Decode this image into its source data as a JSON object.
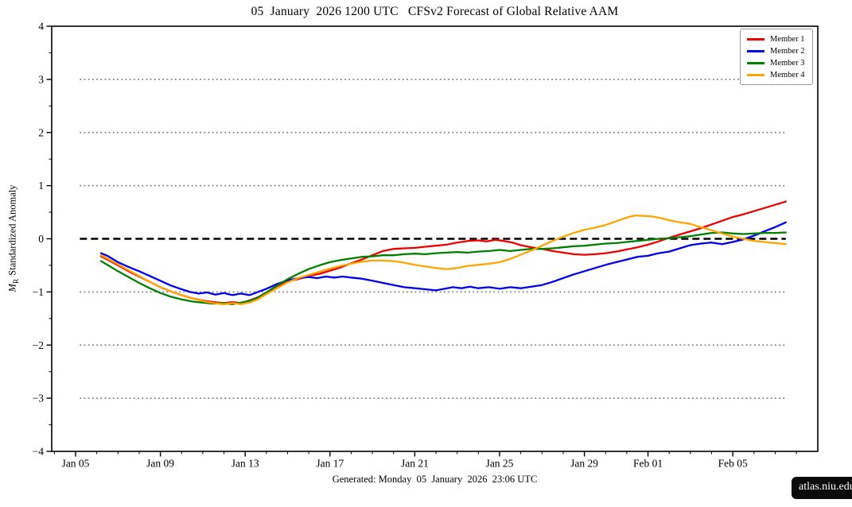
{
  "title": "05  January  2026 1200 UTC   CFSv2 Forecast of Global Relative AAM",
  "footer": "Generated: Monday  05  January  2026  23:06 UTC",
  "watermark": "atlas.niu.edu",
  "ylabel": {
    "var": "M",
    "sub": "R",
    "rest": "Standardized Anomaly"
  },
  "chart_data": {
    "type": "line",
    "title": "05 January 2026 1200 UTC CFSv2 Forecast of Global Relative AAM",
    "ylabel": "M_R Standardized Anomaly",
    "x_unit": "days since Jan 05",
    "xlim_days": [
      -1.13,
      35.0
    ],
    "ylim": [
      -4,
      4
    ],
    "grid": {
      "dotted_at": [
        3,
        2,
        1,
        -1,
        -2,
        -3
      ],
      "zero_dashed": true,
      "span_days": [
        0.2,
        33.5
      ]
    },
    "legend_position": "top-right",
    "xticks": [
      {
        "d": 0,
        "label": "Jan 05"
      },
      {
        "d": 4,
        "label": "Jan 09"
      },
      {
        "d": 8,
        "label": "Jan 13"
      },
      {
        "d": 12,
        "label": "Jan 17"
      },
      {
        "d": 16,
        "label": "Jan 21"
      },
      {
        "d": 20,
        "label": "Jan 25"
      },
      {
        "d": 24,
        "label": "Jan 29"
      },
      {
        "d": 27,
        "label": "Feb 01"
      },
      {
        "d": 31,
        "label": "Feb 05"
      }
    ],
    "yticks": [
      {
        "v": 4,
        "label": "4"
      },
      {
        "v": 3,
        "label": "3"
      },
      {
        "v": 2,
        "label": "2"
      },
      {
        "v": 1,
        "label": "1"
      },
      {
        "v": 0,
        "label": "0"
      },
      {
        "v": -1,
        "label": "−1"
      },
      {
        "v": -2,
        "label": "−2"
      },
      {
        "v": -3,
        "label": "−3"
      },
      {
        "v": -4,
        "label": "−4"
      }
    ],
    "series": [
      {
        "name": "Member 1",
        "color": "#ee0000",
        "points": [
          [
            1.2,
            -0.33
          ],
          [
            1.5,
            -0.39
          ],
          [
            2,
            -0.5
          ],
          [
            2.5,
            -0.61
          ],
          [
            3,
            -0.71
          ],
          [
            3.5,
            -0.81
          ],
          [
            4,
            -0.91
          ],
          [
            4.5,
            -0.99
          ],
          [
            5,
            -1.06
          ],
          [
            5.5,
            -1.12
          ],
          [
            6,
            -1.16
          ],
          [
            6.5,
            -1.19
          ],
          [
            7,
            -1.21
          ],
          [
            7.4,
            -1.19
          ],
          [
            7.8,
            -1.21
          ],
          [
            8.2,
            -1.16
          ],
          [
            8.6,
            -1.1
          ],
          [
            9,
            -1.01
          ],
          [
            9.5,
            -0.89
          ],
          [
            10,
            -0.8
          ],
          [
            10.5,
            -0.76
          ],
          [
            11,
            -0.7
          ],
          [
            11.5,
            -0.66
          ],
          [
            12,
            -0.6
          ],
          [
            12.5,
            -0.54
          ],
          [
            13,
            -0.46
          ],
          [
            13.5,
            -0.39
          ],
          [
            14,
            -0.31
          ],
          [
            14.5,
            -0.23
          ],
          [
            15,
            -0.19
          ],
          [
            15.5,
            -0.18
          ],
          [
            16,
            -0.17
          ],
          [
            16.5,
            -0.15
          ],
          [
            17,
            -0.13
          ],
          [
            17.5,
            -0.11
          ],
          [
            18,
            -0.07
          ],
          [
            18.5,
            -0.04
          ],
          [
            19,
            -0.03
          ],
          [
            19.4,
            -0.05
          ],
          [
            19.8,
            -0.02
          ],
          [
            20.2,
            -0.04
          ],
          [
            20.6,
            -0.07
          ],
          [
            21,
            -0.12
          ],
          [
            21.5,
            -0.16
          ],
          [
            22,
            -0.19
          ],
          [
            22.5,
            -0.23
          ],
          [
            23,
            -0.26
          ],
          [
            23.5,
            -0.29
          ],
          [
            24,
            -0.3
          ],
          [
            24.5,
            -0.29
          ],
          [
            25,
            -0.27
          ],
          [
            25.5,
            -0.24
          ],
          [
            26,
            -0.2
          ],
          [
            26.5,
            -0.16
          ],
          [
            27,
            -0.11
          ],
          [
            27.5,
            -0.05
          ],
          [
            28,
            0.02
          ],
          [
            28.5,
            0.08
          ],
          [
            29,
            0.14
          ],
          [
            29.5,
            0.2
          ],
          [
            30,
            0.27
          ],
          [
            30.5,
            0.34
          ],
          [
            31,
            0.41
          ],
          [
            31.5,
            0.46
          ],
          [
            32,
            0.52
          ],
          [
            32.5,
            0.58
          ],
          [
            33,
            0.64
          ],
          [
            33.5,
            0.7
          ]
        ]
      },
      {
        "name": "Member 2",
        "color": "#0000ee",
        "points": [
          [
            1.2,
            -0.27
          ],
          [
            1.5,
            -0.32
          ],
          [
            2,
            -0.44
          ],
          [
            2.5,
            -0.53
          ],
          [
            3,
            -0.61
          ],
          [
            3.5,
            -0.7
          ],
          [
            4,
            -0.79
          ],
          [
            4.5,
            -0.88
          ],
          [
            5,
            -0.95
          ],
          [
            5.4,
            -1.0
          ],
          [
            5.8,
            -1.03
          ],
          [
            6.2,
            -1.01
          ],
          [
            6.6,
            -1.05
          ],
          [
            7,
            -1.02
          ],
          [
            7.4,
            -1.06
          ],
          [
            7.8,
            -1.03
          ],
          [
            8.2,
            -1.06
          ],
          [
            8.6,
            -1.0
          ],
          [
            9,
            -0.94
          ],
          [
            9.5,
            -0.85
          ],
          [
            10,
            -0.78
          ],
          [
            10.5,
            -0.74
          ],
          [
            11,
            -0.72
          ],
          [
            11.4,
            -0.74
          ],
          [
            11.8,
            -0.71
          ],
          [
            12.2,
            -0.73
          ],
          [
            12.6,
            -0.71
          ],
          [
            13,
            -0.73
          ],
          [
            13.5,
            -0.75
          ],
          [
            14,
            -0.79
          ],
          [
            14.5,
            -0.83
          ],
          [
            15,
            -0.87
          ],
          [
            15.5,
            -0.91
          ],
          [
            16,
            -0.93
          ],
          [
            16.5,
            -0.95
          ],
          [
            17,
            -0.97
          ],
          [
            17.4,
            -0.94
          ],
          [
            17.8,
            -0.91
          ],
          [
            18.2,
            -0.93
          ],
          [
            18.6,
            -0.9
          ],
          [
            19,
            -0.93
          ],
          [
            19.5,
            -0.91
          ],
          [
            20,
            -0.94
          ],
          [
            20.5,
            -0.91
          ],
          [
            21,
            -0.93
          ],
          [
            21.5,
            -0.9
          ],
          [
            22,
            -0.87
          ],
          [
            22.5,
            -0.81
          ],
          [
            23,
            -0.74
          ],
          [
            23.5,
            -0.67
          ],
          [
            24,
            -0.61
          ],
          [
            24.5,
            -0.55
          ],
          [
            25,
            -0.49
          ],
          [
            25.5,
            -0.44
          ],
          [
            26,
            -0.39
          ],
          [
            26.5,
            -0.34
          ],
          [
            27,
            -0.32
          ],
          [
            27.5,
            -0.27
          ],
          [
            28,
            -0.24
          ],
          [
            28.5,
            -0.18
          ],
          [
            29,
            -0.12
          ],
          [
            29.5,
            -0.09
          ],
          [
            30,
            -0.07
          ],
          [
            30.5,
            -0.1
          ],
          [
            31,
            -0.06
          ],
          [
            31.5,
            -0.01
          ],
          [
            32,
            0.06
          ],
          [
            32.5,
            0.14
          ],
          [
            33,
            0.22
          ],
          [
            33.5,
            0.31
          ]
        ]
      },
      {
        "name": "Member 3",
        "color": "#008000",
        "points": [
          [
            1.2,
            -0.42
          ],
          [
            1.5,
            -0.49
          ],
          [
            2,
            -0.61
          ],
          [
            2.5,
            -0.72
          ],
          [
            3,
            -0.83
          ],
          [
            3.5,
            -0.93
          ],
          [
            4,
            -1.02
          ],
          [
            4.5,
            -1.09
          ],
          [
            5,
            -1.14
          ],
          [
            5.5,
            -1.18
          ],
          [
            6,
            -1.2
          ],
          [
            6.5,
            -1.22
          ],
          [
            7,
            -1.21
          ],
          [
            7.4,
            -1.23
          ],
          [
            7.8,
            -1.2
          ],
          [
            8.2,
            -1.17
          ],
          [
            8.6,
            -1.11
          ],
          [
            9,
            -1.01
          ],
          [
            9.5,
            -0.88
          ],
          [
            10,
            -0.76
          ],
          [
            10.5,
            -0.66
          ],
          [
            11,
            -0.57
          ],
          [
            11.5,
            -0.5
          ],
          [
            12,
            -0.44
          ],
          [
            12.5,
            -0.4
          ],
          [
            13,
            -0.37
          ],
          [
            13.5,
            -0.34
          ],
          [
            14,
            -0.33
          ],
          [
            14.5,
            -0.31
          ],
          [
            15,
            -0.31
          ],
          [
            15.5,
            -0.29
          ],
          [
            16,
            -0.28
          ],
          [
            16.5,
            -0.29
          ],
          [
            17,
            -0.27
          ],
          [
            17.5,
            -0.26
          ],
          [
            18,
            -0.25
          ],
          [
            18.5,
            -0.26
          ],
          [
            19,
            -0.24
          ],
          [
            19.5,
            -0.23
          ],
          [
            20,
            -0.21
          ],
          [
            20.5,
            -0.23
          ],
          [
            21,
            -0.21
          ],
          [
            21.5,
            -0.19
          ],
          [
            22,
            -0.19
          ],
          [
            22.5,
            -0.18
          ],
          [
            23,
            -0.16
          ],
          [
            23.5,
            -0.14
          ],
          [
            24,
            -0.13
          ],
          [
            24.5,
            -0.11
          ],
          [
            25,
            -0.09
          ],
          [
            25.5,
            -0.08
          ],
          [
            26,
            -0.06
          ],
          [
            26.5,
            -0.04
          ],
          [
            27,
            -0.02
          ],
          [
            27.5,
            0.0
          ],
          [
            28,
            0.01
          ],
          [
            28.5,
            0.03
          ],
          [
            29,
            0.05
          ],
          [
            29.5,
            0.08
          ],
          [
            30,
            0.11
          ],
          [
            30.5,
            0.12
          ],
          [
            31,
            0.1
          ],
          [
            31.5,
            0.09
          ],
          [
            32,
            0.1
          ],
          [
            32.5,
            0.11
          ],
          [
            33,
            0.11
          ],
          [
            33.5,
            0.12
          ]
        ]
      },
      {
        "name": "Member 4",
        "color": "#ffa500",
        "points": [
          [
            1.2,
            -0.31
          ],
          [
            1.5,
            -0.37
          ],
          [
            2,
            -0.48
          ],
          [
            2.5,
            -0.59
          ],
          [
            3,
            -0.7
          ],
          [
            3.5,
            -0.81
          ],
          [
            4,
            -0.91
          ],
          [
            4.5,
            -0.99
          ],
          [
            5,
            -1.06
          ],
          [
            5.5,
            -1.12
          ],
          [
            6,
            -1.17
          ],
          [
            6.5,
            -1.21
          ],
          [
            7,
            -1.23
          ],
          [
            7.4,
            -1.21
          ],
          [
            7.8,
            -1.23
          ],
          [
            8.2,
            -1.2
          ],
          [
            8.6,
            -1.14
          ],
          [
            9,
            -1.04
          ],
          [
            9.5,
            -0.93
          ],
          [
            10,
            -0.82
          ],
          [
            10.5,
            -0.74
          ],
          [
            11,
            -0.68
          ],
          [
            11.5,
            -0.62
          ],
          [
            12,
            -0.56
          ],
          [
            12.5,
            -0.51
          ],
          [
            13,
            -0.47
          ],
          [
            13.5,
            -0.43
          ],
          [
            14,
            -0.41
          ],
          [
            14.5,
            -0.41
          ],
          [
            15,
            -0.42
          ],
          [
            15.5,
            -0.45
          ],
          [
            16,
            -0.49
          ],
          [
            16.5,
            -0.52
          ],
          [
            17,
            -0.55
          ],
          [
            17.5,
            -0.57
          ],
          [
            18,
            -0.55
          ],
          [
            18.5,
            -0.51
          ],
          [
            19,
            -0.49
          ],
          [
            19.5,
            -0.47
          ],
          [
            20,
            -0.44
          ],
          [
            20.5,
            -0.38
          ],
          [
            21,
            -0.3
          ],
          [
            21.5,
            -0.22
          ],
          [
            22,
            -0.13
          ],
          [
            22.5,
            -0.04
          ],
          [
            23,
            0.04
          ],
          [
            23.5,
            0.11
          ],
          [
            24,
            0.17
          ],
          [
            24.5,
            0.21
          ],
          [
            25,
            0.26
          ],
          [
            25.5,
            0.33
          ],
          [
            26,
            0.4
          ],
          [
            26.4,
            0.44
          ],
          [
            26.8,
            0.43
          ],
          [
            27.2,
            0.42
          ],
          [
            27.6,
            0.39
          ],
          [
            28,
            0.35
          ],
          [
            28.5,
            0.31
          ],
          [
            29,
            0.28
          ],
          [
            29.5,
            0.22
          ],
          [
            30,
            0.16
          ],
          [
            30.5,
            0.1
          ],
          [
            31,
            0.04
          ],
          [
            31.5,
            0.0
          ],
          [
            32,
            -0.04
          ],
          [
            32.5,
            -0.06
          ],
          [
            33,
            -0.08
          ],
          [
            33.5,
            -0.1
          ]
        ]
      }
    ]
  }
}
